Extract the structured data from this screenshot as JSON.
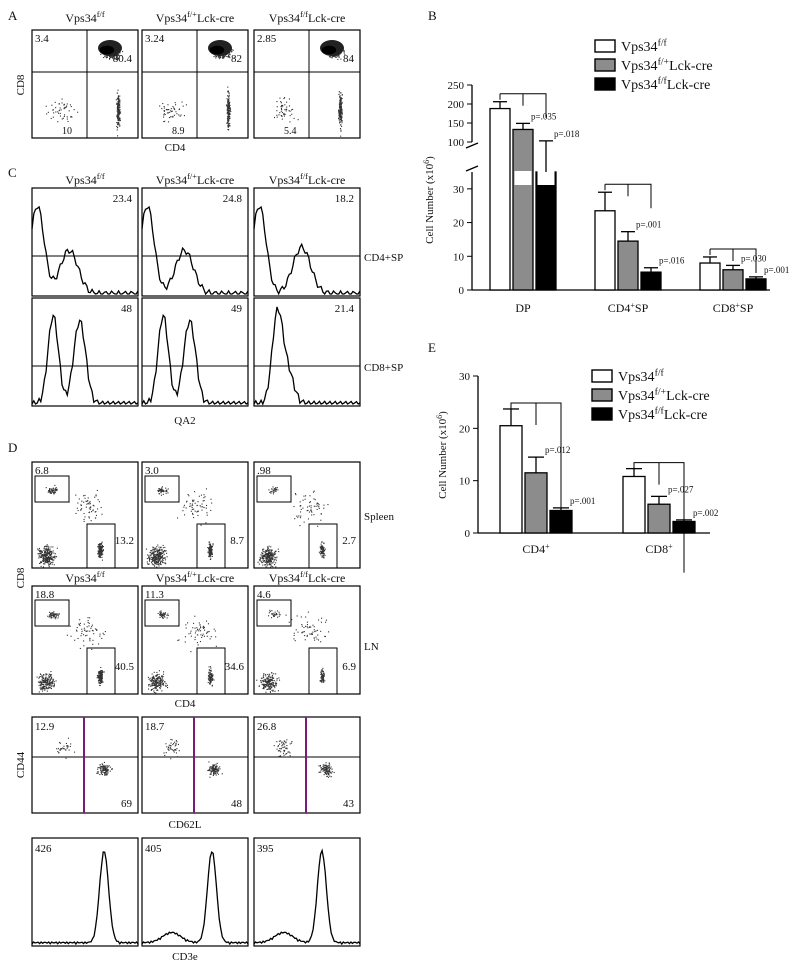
{
  "genotypes": {
    "ff": "Vps34 f/f",
    "fp_lck": "Vps34 f/+ Lck-cre",
    "ff_lck": "Vps34 f/f Lck-cre"
  },
  "panels": {
    "A": {
      "letter": "A",
      "xlabel": "CD4",
      "ylabel": "CD8",
      "plots": [
        {
          "ul": "3.4",
          "ur": "80.4",
          "lr": "10"
        },
        {
          "ul": "3.24",
          "ur": "82",
          "lr": "8.9"
        },
        {
          "ul": "2.85",
          "ur": "84",
          "lr": "5.4"
        }
      ]
    },
    "C": {
      "letter": "C",
      "xlabel": "QA2",
      "row_labels": [
        "CD4+SP",
        "CD8+SP"
      ],
      "values": [
        [
          "23.4",
          "24.8",
          "18.2"
        ],
        [
          "48",
          "49",
          "21.4"
        ]
      ]
    },
    "D": {
      "letter": "D",
      "spleen": {
        "label": "Spleen",
        "ylabel": "CD8",
        "ul": [
          "6.8",
          "3.0",
          ".98"
        ],
        "lr": [
          "13.2",
          "8.7",
          "2.7"
        ]
      },
      "ln": {
        "label": "LN",
        "xlabel": "CD4",
        "ul": [
          "18.8",
          "11.3",
          "4.6"
        ],
        "lr": [
          "40.5",
          "34.6",
          "6.9"
        ]
      },
      "cd44": {
        "ylabel": "CD44",
        "xlabel": "CD62L",
        "ul": [
          "12.9",
          "18.7",
          "26.8"
        ],
        "lr": [
          "69",
          "48",
          "43"
        ]
      },
      "cd3": {
        "xlabel": "CD3e",
        "mfi": [
          "426",
          "405",
          "395"
        ]
      }
    },
    "B": {
      "letter": "B"
    },
    "E": {
      "letter": "E"
    }
  },
  "colors": {
    "ff": "#ffffff",
    "fp_lck": "#8c8c8c",
    "ff_lck": "#000000",
    "gate_line": "#7a1a7a"
  },
  "chart_data": [
    {
      "panel": "B",
      "type": "bar",
      "categories": [
        "DP",
        "CD4+SP",
        "CD8+SP"
      ],
      "ylabel": "Cell Number (x10^6)",
      "ylim": [
        0,
        250
      ],
      "axis_break": [
        35,
        100
      ],
      "yticks_lower": [
        0,
        10,
        20,
        30
      ],
      "yticks_upper": [
        100,
        150,
        200,
        250
      ],
      "series": [
        {
          "name": "Vps34 f/f",
          "values": [
            188,
            23.5,
            8.0
          ],
          "errors": [
            18,
            5.5,
            1.8
          ]
        },
        {
          "name": "Vps34 f/+ Lck-cre",
          "values": [
            133,
            14.5,
            6.0
          ],
          "errors": [
            16,
            2.8,
            1.3
          ]
        },
        {
          "name": "Vps34 f/f Lck-cre",
          "values": [
            90,
            5.3,
            3.3
          ],
          "errors": [
            13,
            1.3,
            0.6
          ]
        }
      ],
      "pvalues": [
        [
          "p=.035",
          "p=.018"
        ],
        [
          "p=.001",
          "p=.016"
        ],
        [
          "p=.030",
          "p=.001"
        ]
      ]
    },
    {
      "panel": "E",
      "type": "bar",
      "categories": [
        "CD4+",
        "CD8+"
      ],
      "ylabel": "Cell Number (x10^6)",
      "ylim": [
        0,
        30
      ],
      "yticks": [
        0,
        10,
        20,
        30
      ],
      "series": [
        {
          "name": "Vps34 f/f",
          "values": [
            20.5,
            10.8
          ],
          "errors": [
            3.2,
            1.5
          ]
        },
        {
          "name": "Vps34 f/+ Lck-cre",
          "values": [
            11.5,
            5.5
          ],
          "errors": [
            3.0,
            1.5
          ]
        },
        {
          "name": "Vps34 f/f Lck-cre",
          "values": [
            4.3,
            2.2
          ],
          "errors": [
            0.5,
            0.3
          ]
        }
      ],
      "pvalues": [
        [
          "p=.012",
          "p=.001"
        ],
        [
          "p=.027",
          "p=.002"
        ]
      ]
    }
  ]
}
